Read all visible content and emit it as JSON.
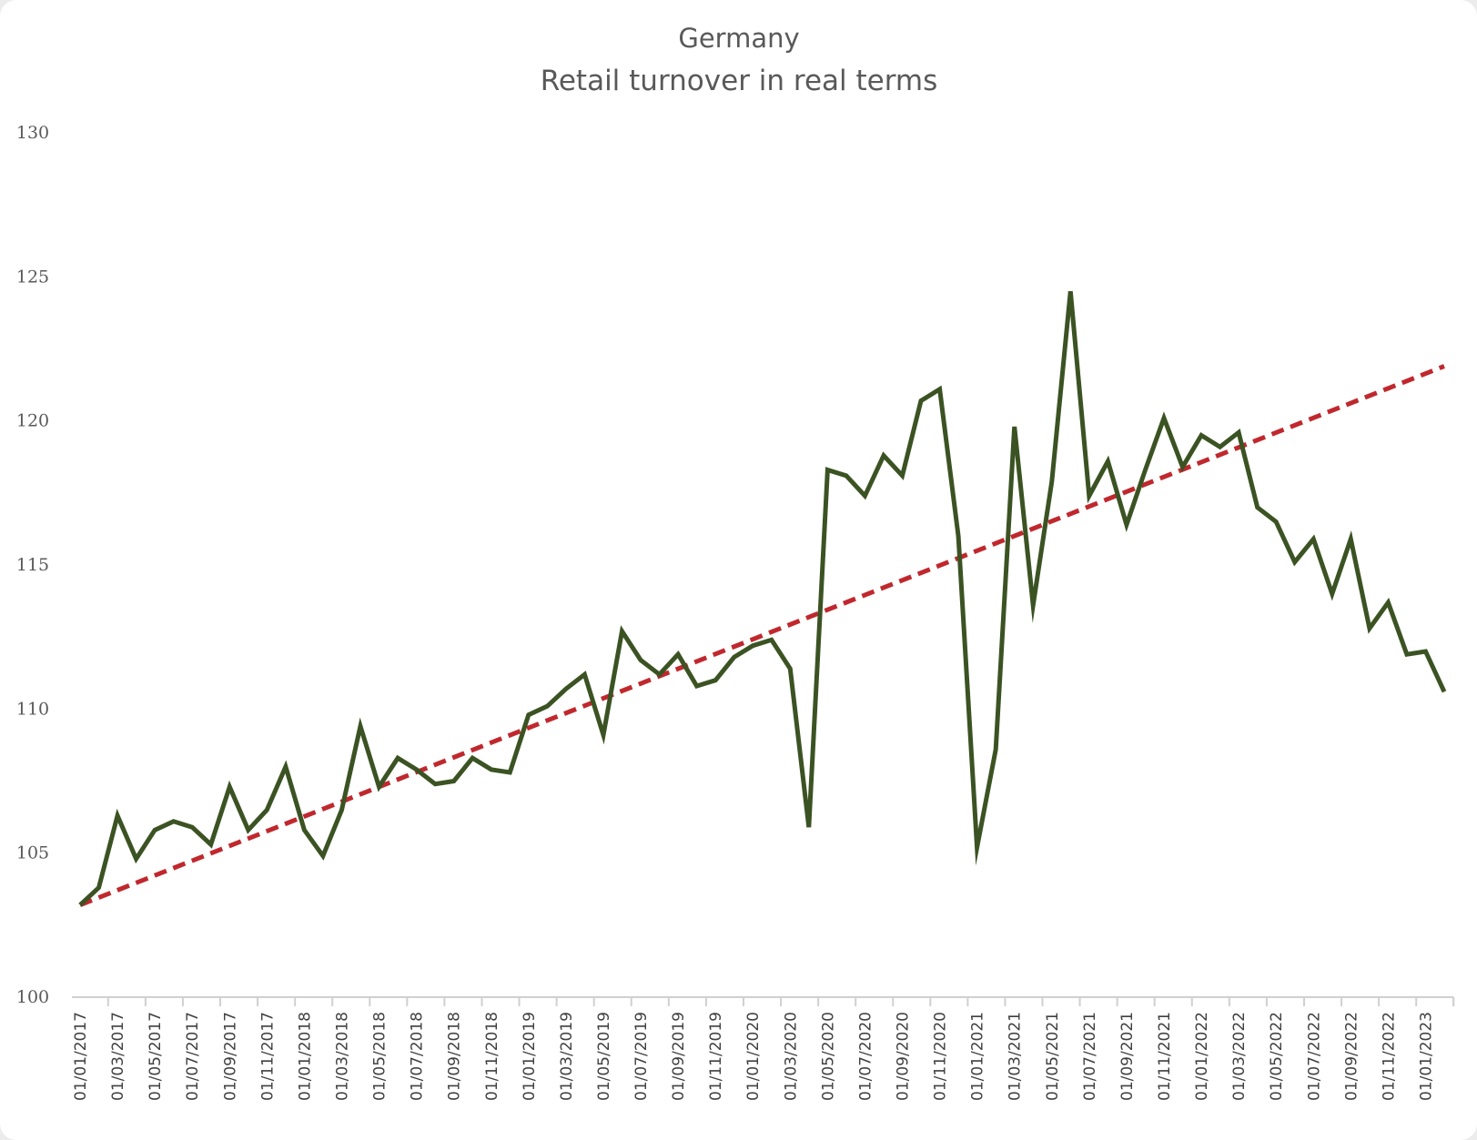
{
  "chart_data": {
    "type": "line",
    "title": "Germany",
    "subtitle": "Retail turnover in real terms",
    "xlabel": "",
    "ylabel": "",
    "ylim": [
      100,
      130
    ],
    "yticks": [
      100,
      105,
      110,
      115,
      120,
      125,
      130
    ],
    "grid": false,
    "legend": "none",
    "x": [
      "01/01/2017",
      "01/02/2017",
      "01/03/2017",
      "01/04/2017",
      "01/05/2017",
      "01/06/2017",
      "01/07/2017",
      "01/08/2017",
      "01/09/2017",
      "01/10/2017",
      "01/11/2017",
      "01/12/2017",
      "01/01/2018",
      "01/02/2018",
      "01/03/2018",
      "01/04/2018",
      "01/05/2018",
      "01/06/2018",
      "01/07/2018",
      "01/08/2018",
      "01/09/2018",
      "01/10/2018",
      "01/11/2018",
      "01/12/2018",
      "01/01/2019",
      "01/02/2019",
      "01/03/2019",
      "01/04/2019",
      "01/05/2019",
      "01/06/2019",
      "01/07/2019",
      "01/08/2019",
      "01/09/2019",
      "01/10/2019",
      "01/11/2019",
      "01/12/2019",
      "01/01/2020",
      "01/02/2020",
      "01/03/2020",
      "01/04/2020",
      "01/05/2020",
      "01/06/2020",
      "01/07/2020",
      "01/08/2020",
      "01/09/2020",
      "01/10/2020",
      "01/11/2020",
      "01/12/2020",
      "01/01/2021",
      "01/02/2021",
      "01/03/2021",
      "01/04/2021",
      "01/05/2021",
      "01/06/2021",
      "01/07/2021",
      "01/08/2021",
      "01/09/2021",
      "01/10/2021",
      "01/11/2021",
      "01/12/2021",
      "01/01/2022",
      "01/02/2022",
      "01/03/2022",
      "01/04/2022",
      "01/05/2022",
      "01/06/2022",
      "01/07/2022",
      "01/08/2022",
      "01/09/2022",
      "01/10/2022",
      "01/11/2022",
      "01/12/2022",
      "01/01/2023",
      "01/02/2023"
    ],
    "x_tick_labels": [
      "01/01/2017",
      "01/03/2017",
      "01/05/2017",
      "01/07/2017",
      "01/09/2017",
      "01/11/2017",
      "01/01/2018",
      "01/03/2018",
      "01/05/2018",
      "01/07/2018",
      "01/09/2018",
      "01/11/2018",
      "01/01/2019",
      "01/03/2019",
      "01/05/2019",
      "01/07/2019",
      "01/09/2019",
      "01/11/2019",
      "01/01/2020",
      "01/03/2020",
      "01/05/2020",
      "01/07/2020",
      "01/09/2020",
      "01/11/2020",
      "01/01/2021",
      "01/03/2021",
      "01/05/2021",
      "01/07/2021",
      "01/09/2021",
      "01/11/2021",
      "01/01/2022",
      "01/03/2022",
      "01/05/2022",
      "01/07/2022",
      "01/09/2022",
      "01/11/2022",
      "01/01/2023"
    ],
    "series": [
      {
        "style": "solid",
        "color": "#3b5323",
        "values": [
          103.2,
          103.8,
          106.3,
          104.8,
          105.8,
          106.1,
          105.9,
          105.3,
          107.3,
          105.8,
          106.5,
          108.0,
          105.8,
          104.9,
          106.5,
          109.4,
          107.3,
          108.3,
          107.9,
          107.4,
          107.5,
          108.3,
          107.9,
          107.8,
          109.8,
          110.1,
          110.7,
          111.2,
          109.1,
          112.7,
          111.7,
          111.2,
          111.9,
          110.8,
          111.0,
          111.8,
          112.2,
          112.4,
          111.4,
          105.9,
          118.3,
          118.1,
          117.4,
          118.8,
          118.1,
          120.7,
          121.1,
          116.0,
          105.2,
          108.6,
          119.8,
          113.6,
          117.9,
          124.5,
          117.4,
          118.6,
          116.4,
          118.3,
          120.1,
          118.4,
          119.5,
          119.1,
          119.6,
          117.0,
          116.5,
          115.1,
          115.9,
          114.0,
          115.9,
          112.8,
          113.7,
          111.9,
          112.0,
          110.6
        ]
      },
      {
        "style": "dashed",
        "color": "#c0282d",
        "values_start_end": [
          103.2,
          121.9
        ]
      }
    ]
  }
}
